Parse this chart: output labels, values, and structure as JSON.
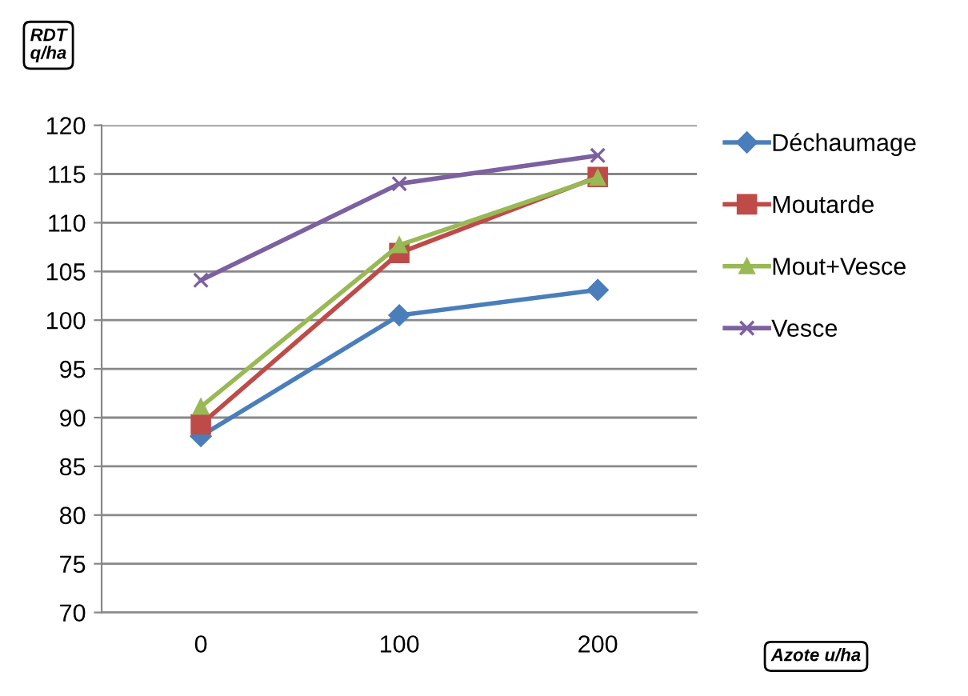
{
  "chart_data": {
    "type": "line",
    "ylabel": "RDT\nq/ha",
    "xlabel": "Azote u/ha",
    "categories": [
      "0",
      "100",
      "200"
    ],
    "series": [
      {
        "name": "Déchaumage",
        "color": "#4a7ebb",
        "marker": "diamond",
        "values": [
          88.1,
          100.5,
          103.1
        ]
      },
      {
        "name": "Moutarde",
        "color": "#be4b48",
        "marker": "square",
        "values": [
          89.3,
          106.9,
          114.7
        ]
      },
      {
        "name": "Mout+Vesce",
        "color": "#98b954",
        "marker": "triangle",
        "values": [
          91.1,
          107.7,
          114.6
        ]
      },
      {
        "name": "Vesce",
        "color": "#7d60a0",
        "marker": "cross",
        "values": [
          104.1,
          114.0,
          116.9
        ]
      }
    ],
    "ylim": [
      70,
      120
    ],
    "yticks": [
      70,
      75,
      80,
      85,
      90,
      95,
      100,
      105,
      110,
      115,
      120
    ],
    "grid": "y",
    "legend": "right"
  }
}
